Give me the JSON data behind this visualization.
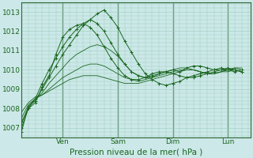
{
  "title": "Pression niveau de la mer( hPa )",
  "ylabel_vals": [
    1007,
    1008,
    1009,
    1010,
    1011,
    1012,
    1013
  ],
  "ylim": [
    1006.5,
    1013.5
  ],
  "xlim": [
    0,
    100
  ],
  "xtick_positions": [
    18,
    42,
    66,
    90
  ],
  "xtick_labels": [
    "Ven",
    "Sam",
    "Dim",
    "Lun"
  ],
  "vlines": [
    18,
    42,
    66,
    90
  ],
  "bg_color": "#cce8e8",
  "grid_color": "#99ccbb",
  "line_color": "#1a6620",
  "marker_color": "#1a6620",
  "series": [
    [
      1006.8,
      1008.1,
      1008.4,
      1009.0,
      1009.6,
      1010.2,
      1010.8,
      1011.3,
      1011.8,
      1012.3,
      1012.6,
      1012.9,
      1013.1,
      1012.7,
      1012.2,
      1011.5,
      1010.9,
      1010.3,
      1009.8,
      1009.5,
      1009.3,
      1009.2,
      1009.3,
      1009.4,
      1009.6,
      1009.7,
      1009.8,
      1009.9,
      1010.0,
      1010.1,
      1010.0,
      1009.9,
      1010.0
    ],
    [
      1007.0,
      1008.0,
      1008.3,
      1009.1,
      1009.7,
      1010.8,
      1011.7,
      1012.1,
      1012.3,
      1012.4,
      1012.2,
      1011.8,
      1011.2,
      1010.6,
      1010.1,
      1009.7,
      1009.5,
      1009.5,
      1009.6,
      1009.8,
      1009.9,
      1009.9,
      1009.8,
      1009.7,
      1009.6,
      1009.6,
      1009.7,
      1009.8,
      1009.9,
      1010.0,
      1010.1,
      1010.0,
      1009.9
    ],
    [
      1007.2,
      1008.1,
      1008.5,
      1008.8,
      1009.3,
      1009.7,
      1010.1,
      1010.5,
      1010.8,
      1011.0,
      1011.2,
      1011.3,
      1011.2,
      1011.0,
      1010.7,
      1010.3,
      1009.9,
      1009.7,
      1009.6,
      1009.6,
      1009.7,
      1009.8,
      1009.9,
      1010.0,
      1010.0,
      1010.0,
      1009.9,
      1009.8,
      1009.8,
      1009.9,
      1010.0,
      1010.1,
      1010.1
    ],
    [
      1007.5,
      1008.2,
      1008.5,
      1008.7,
      1009.0,
      1009.3,
      1009.6,
      1009.8,
      1010.0,
      1010.2,
      1010.3,
      1010.3,
      1010.2,
      1010.0,
      1009.8,
      1009.6,
      1009.5,
      1009.4,
      1009.5,
      1009.6,
      1009.8,
      1009.9,
      1010.0,
      1010.1,
      1010.1,
      1010.0,
      1009.9,
      1009.8,
      1009.8,
      1009.9,
      1010.0,
      1010.1,
      1010.0
    ],
    [
      1007.8,
      1008.3,
      1008.6,
      1008.7,
      1008.9,
      1009.1,
      1009.3,
      1009.5,
      1009.6,
      1009.7,
      1009.7,
      1009.7,
      1009.6,
      1009.5,
      1009.4,
      1009.3,
      1009.3,
      1009.3,
      1009.4,
      1009.5,
      1009.6,
      1009.7,
      1009.8,
      1009.9,
      1010.0,
      1010.0,
      1009.9,
      1009.8,
      1009.8,
      1009.9,
      1009.9,
      1010.0,
      1009.9
    ],
    [
      1007.3,
      1008.0,
      1008.5,
      1009.3,
      1010.0,
      1010.6,
      1011.2,
      1011.7,
      1012.1,
      1012.4,
      1012.6,
      1012.4,
      1012.0,
      1011.4,
      1010.8,
      1010.3,
      1009.9,
      1009.7,
      1009.6,
      1009.7,
      1009.8,
      1009.9,
      1010.0,
      1009.9,
      1010.1,
      1010.2,
      1010.2,
      1010.1,
      1010.0,
      1010.0,
      1010.0,
      1010.0,
      1009.9
    ]
  ],
  "marked_series": [
    0,
    1,
    5
  ],
  "x_step": 3,
  "figsize": [
    3.2,
    2.0
  ],
  "dpi": 100
}
